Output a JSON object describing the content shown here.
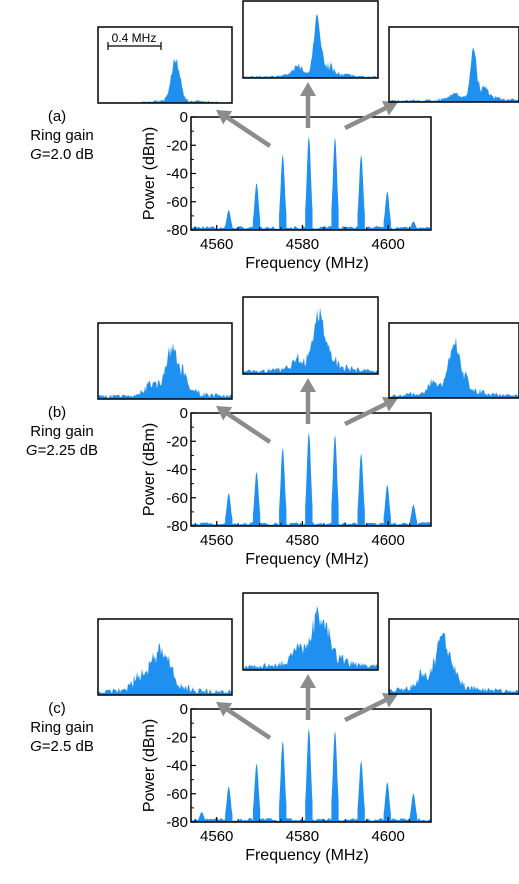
{
  "colors": {
    "spectrum": "#1f8ff0",
    "arrow": "#8c8c8c",
    "axis": "#000000"
  },
  "chart_data": [
    {
      "type": "area",
      "panel_label": "(a)",
      "ring_gain_label": "Ring gain",
      "gain_symbol": "G",
      "gain_value": "=2.0 dB",
      "xlabel": "Frequency (MHz)",
      "ylabel": "Power (dBm)",
      "xlim": [
        4554,
        4610
      ],
      "ylim": [
        -80,
        0
      ],
      "xticks": [
        4560,
        4580,
        4600
      ],
      "yticks": [
        0,
        -20,
        -40,
        -60,
        -80
      ],
      "peak_width_mhz": 1.7,
      "peaks": [
        {
          "x": 4562.8,
          "y": -66
        },
        {
          "x": 4569.3,
          "y": -47
        },
        {
          "x": 4575.4,
          "y": -27
        },
        {
          "x": 4581.5,
          "y": -14
        },
        {
          "x": 4587.6,
          "y": -15
        },
        {
          "x": 4593.7,
          "y": -27
        },
        {
          "x": 4599.8,
          "y": -53
        },
        {
          "x": 4605.9,
          "y": -74
        }
      ],
      "insets": [
        {
          "scalebar": "0.4 MHz",
          "noise": 0.07,
          "peak_pos": 0.58,
          "peak_height": 0.62,
          "peak_width": 0.045,
          "side_lobe": 0.0,
          "floor_start": 0.3
        },
        {
          "noise": 0.14,
          "peak_pos": 0.55,
          "peak_height": 0.8,
          "peak_width": 0.035,
          "side_lobe": 0.35,
          "floor_start": 0.0
        },
        {
          "noise": 0.16,
          "peak_pos": 0.65,
          "peak_height": 0.75,
          "peak_width": 0.03,
          "side_lobe": 0.3,
          "floor_start": 0.0
        }
      ]
    },
    {
      "type": "area",
      "panel_label": "(b)",
      "ring_gain_label": "Ring gain",
      "gain_symbol": "G",
      "gain_value": "=2.25 dB",
      "xlabel": "Frequency (MHz)",
      "ylabel": "Power (dBm)",
      "xlim": [
        4554,
        4610
      ],
      "ylim": [
        -80,
        0
      ],
      "xticks": [
        4560,
        4580,
        4600
      ],
      "yticks": [
        0,
        -20,
        -40,
        -60,
        -80
      ],
      "peak_width_mhz": 1.7,
      "peaks": [
        {
          "x": 4562.8,
          "y": -57
        },
        {
          "x": 4569.3,
          "y": -42
        },
        {
          "x": 4575.4,
          "y": -25
        },
        {
          "x": 4581.5,
          "y": -14
        },
        {
          "x": 4587.6,
          "y": -16
        },
        {
          "x": 4593.7,
          "y": -29
        },
        {
          "x": 4599.8,
          "y": -51
        },
        {
          "x": 4605.9,
          "y": -65
        }
      ],
      "insets": [
        {
          "noise": 0.3,
          "peak_pos": 0.55,
          "peak_height": 0.55,
          "peak_width": 0.06,
          "side_lobe": 0.45,
          "floor_start": 0.0
        },
        {
          "noise": 0.3,
          "peak_pos": 0.56,
          "peak_height": 0.72,
          "peak_width": 0.05,
          "side_lobe": 0.4,
          "floor_start": 0.0
        },
        {
          "noise": 0.3,
          "peak_pos": 0.5,
          "peak_height": 0.68,
          "peak_width": 0.05,
          "side_lobe": 0.45,
          "floor_start": 0.0
        }
      ]
    },
    {
      "type": "area",
      "panel_label": "(c)",
      "ring_gain_label": "Ring gain",
      "gain_symbol": "G",
      "gain_value": "=2.5 dB",
      "xlabel": "Frequency (MHz)",
      "ylabel": "Power (dBm)",
      "xlim": [
        4554,
        4610
      ],
      "ylim": [
        -80,
        0
      ],
      "xticks": [
        4560,
        4580,
        4600
      ],
      "yticks": [
        0,
        -20,
        -40,
        -60,
        -80
      ],
      "peak_width_mhz": 1.7,
      "peaks": [
        {
          "x": 4556.5,
          "y": -73
        },
        {
          "x": 4562.8,
          "y": -55
        },
        {
          "x": 4569.3,
          "y": -39
        },
        {
          "x": 4575.4,
          "y": -23
        },
        {
          "x": 4581.5,
          "y": -14
        },
        {
          "x": 4587.6,
          "y": -16
        },
        {
          "x": 4593.7,
          "y": -37
        },
        {
          "x": 4599.8,
          "y": -52
        },
        {
          "x": 4605.9,
          "y": -60
        }
      ],
      "insets": [
        {
          "noise": 0.35,
          "peak_pos": 0.45,
          "peak_height": 0.45,
          "peak_width": 0.08,
          "side_lobe": 0.5,
          "floor_start": 0.0
        },
        {
          "noise": 0.4,
          "peak_pos": 0.55,
          "peak_height": 0.58,
          "peak_width": 0.07,
          "side_lobe": 0.55,
          "floor_start": 0.0
        },
        {
          "noise": 0.35,
          "peak_pos": 0.4,
          "peak_height": 0.6,
          "peak_width": 0.07,
          "side_lobe": 0.5,
          "floor_start": 0.0
        }
      ]
    }
  ]
}
